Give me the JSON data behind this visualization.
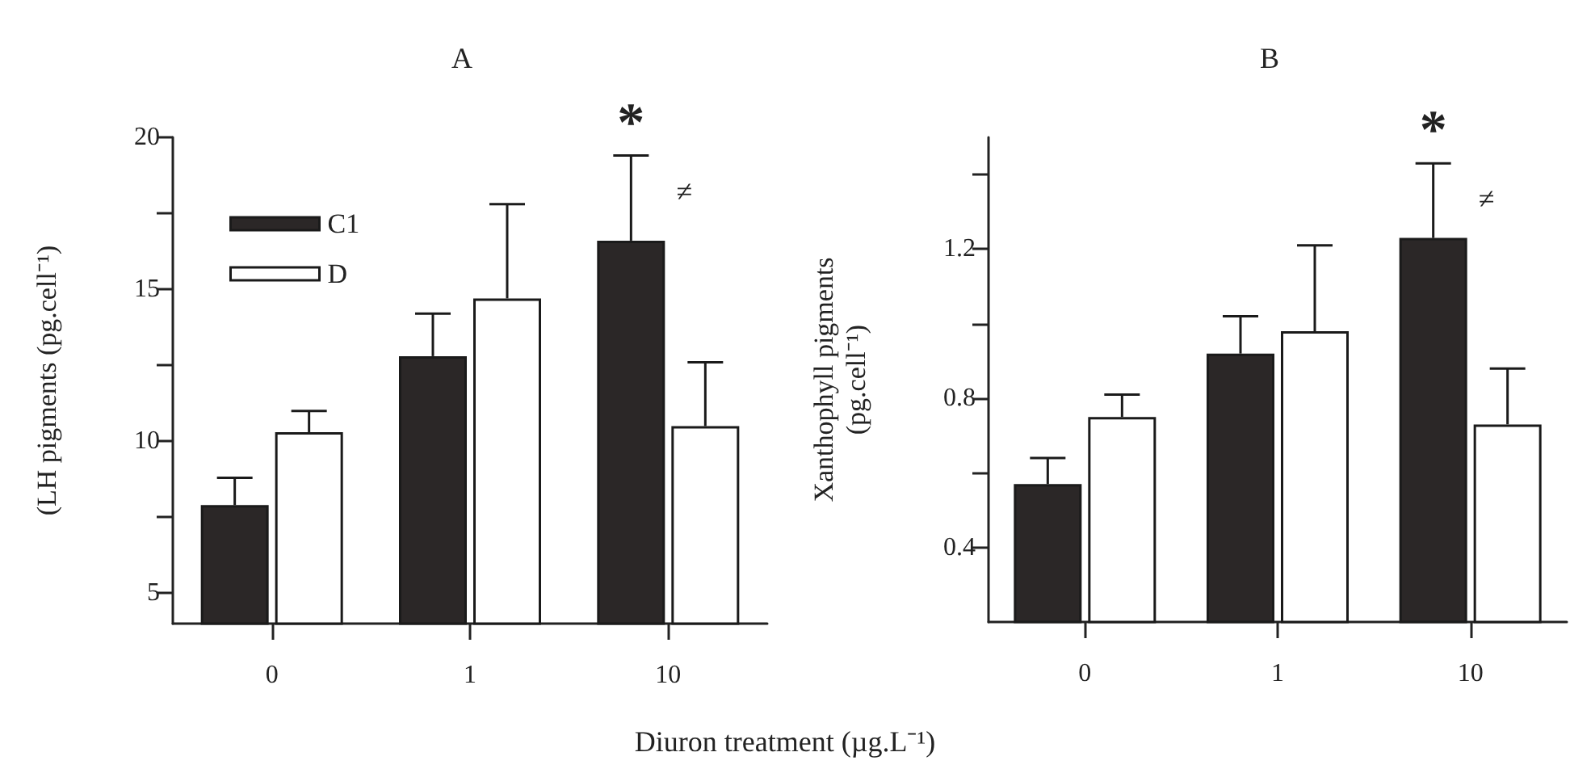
{
  "chart_data": [
    {
      "type": "bar",
      "title": "A",
      "xlabel": "Diuron treatment (µg.L⁻¹)",
      "ylabel": "(LH pigments (pg.cell⁻¹)",
      "categories": [
        "0",
        "1",
        "10"
      ],
      "series": [
        {
          "name": "C1",
          "color": "#2b2727",
          "values": [
            7.9,
            12.8,
            16.6
          ],
          "errors": [
            [
              7.9,
              8.8
            ],
            [
              12.8,
              14.2
            ],
            [
              16.6,
              19.4
            ]
          ]
        },
        {
          "name": "D",
          "color": "#ffffff",
          "values": [
            10.3,
            14.7,
            10.5
          ],
          "errors": [
            [
              10.3,
              11.0
            ],
            [
              14.7,
              17.8
            ],
            [
              10.5,
              12.6
            ]
          ]
        }
      ],
      "ylim": [
        4,
        20
      ],
      "yticks": [
        5,
        {
          "value": 7.5,
          "label": null
        },
        10,
        {
          "value": 12.5,
          "label": null
        },
        15,
        {
          "value": 17.5,
          "label": null
        },
        20
      ],
      "legend": "top left",
      "grid": false,
      "annotations": [
        "*",
        "≠"
      ]
    },
    {
      "type": "bar",
      "title": "B",
      "ylabel": "Xanthophyll pigments\n(pg.cell⁻¹)",
      "categories": [
        "0",
        "1",
        "10"
      ],
      "series": [
        {
          "color": "#2b2727",
          "values": [
            0.57,
            0.92,
            1.23
          ],
          "errors": [
            [
              0.57,
              0.64
            ],
            [
              0.92,
              1.02
            ],
            [
              1.23,
              1.43
            ]
          ]
        },
        {
          "color": "#ffffff",
          "values": [
            0.75,
            0.98,
            0.73
          ],
          "errors": [
            [
              0.75,
              0.81
            ],
            [
              0.98,
              1.21
            ],
            [
              0.73,
              0.88
            ]
          ]
        }
      ],
      "ylim": [
        0.2,
        1.5
      ],
      "yticks": [
        0.4,
        {
          "value": 0.6,
          "label": null
        },
        0.8,
        {
          "value": 1.0,
          "label": null
        },
        1.2,
        {
          "value": 1.4,
          "label": null
        }
      ],
      "grid": false,
      "legend": false,
      "annotations": [
        "*",
        "≠"
      ]
    }
  ]
}
